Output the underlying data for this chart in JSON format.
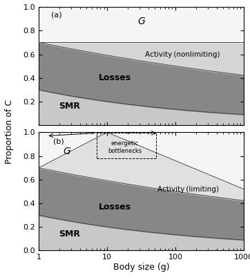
{
  "smr_color": "#c8c8c8",
  "losses_color": "#878787",
  "activity_nonlim_color": "#d5d5d5",
  "activity_lim_color": "#e0e0e0",
  "g_color": "#f5f5f5",
  "panel_a_label": "(a)",
  "panel_b_label": "(b)",
  "g_label": "G",
  "activity_nonlim_label": "Activity (nonlimiting)",
  "activity_lim_label": "Activity (limiting)",
  "losses_label": "Losses",
  "smr_label": "SMR",
  "xlabel": "Body size (g)",
  "ylabel": "Proportion of C",
  "energetic_label": "energetic\nbottlenecks",
  "x_tick_labels": [
    "1",
    "10",
    "100",
    "1000"
  ]
}
